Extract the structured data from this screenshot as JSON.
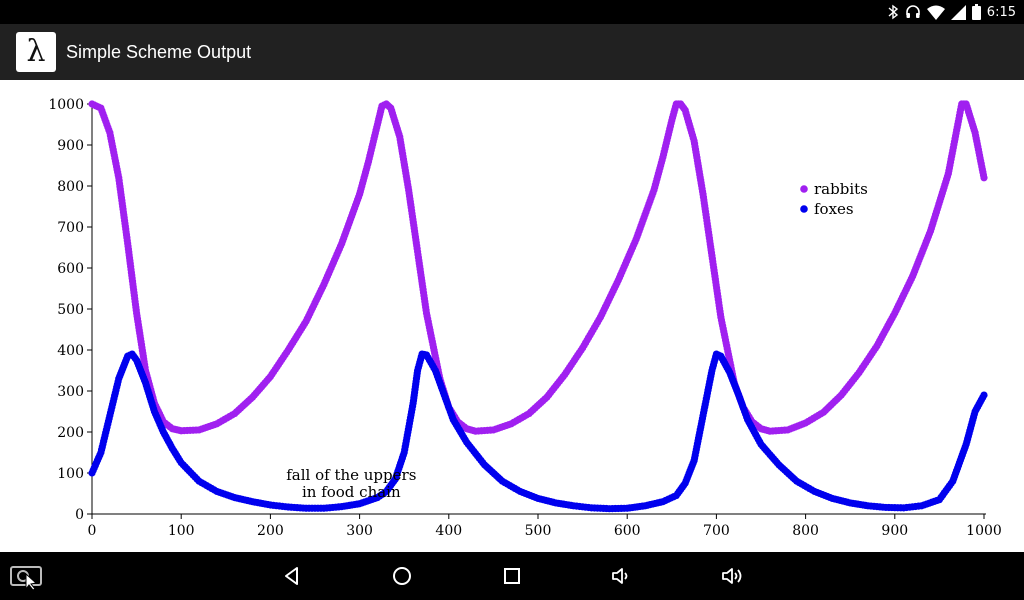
{
  "status_bar": {
    "time": "6:15",
    "icons": [
      "bluetooth-icon",
      "headset-icon",
      "wifi-icon",
      "signal-icon",
      "battery-icon"
    ]
  },
  "app_bar": {
    "icon_glyph": "λ",
    "title": "Simple Scheme Output"
  },
  "nav_bar": {
    "buttons": [
      "screenshot-icon",
      "back-icon",
      "home-icon",
      "recents-icon",
      "volume-down-icon",
      "volume-up-icon"
    ]
  },
  "colors": {
    "rabbits": "#a020f0",
    "foxes": "#0000ee",
    "app_bar": "#212121"
  },
  "chart_data": {
    "type": "scatter",
    "xlim": [
      0,
      1000
    ],
    "ylim": [
      0,
      1000
    ],
    "x_ticks": [
      0,
      100,
      200,
      300,
      400,
      500,
      600,
      700,
      800,
      900,
      1000
    ],
    "y_ticks": [
      0,
      100,
      200,
      300,
      400,
      500,
      600,
      700,
      800,
      900,
      1000
    ],
    "legend_position": "top-right",
    "annotation": {
      "lines": [
        "fall of the uppers",
        "in food chain"
      ],
      "x": 210,
      "y": 88
    },
    "series": [
      {
        "name": "rabbits",
        "color": "#a020f0",
        "points": [
          [
            0,
            1000
          ],
          [
            10,
            990
          ],
          [
            20,
            930
          ],
          [
            30,
            820
          ],
          [
            40,
            660
          ],
          [
            50,
            490
          ],
          [
            60,
            350
          ],
          [
            70,
            270
          ],
          [
            80,
            225
          ],
          [
            90,
            208
          ],
          [
            100,
            203
          ],
          [
            120,
            205
          ],
          [
            140,
            220
          ],
          [
            160,
            245
          ],
          [
            180,
            285
          ],
          [
            200,
            335
          ],
          [
            220,
            400
          ],
          [
            240,
            470
          ],
          [
            260,
            560
          ],
          [
            280,
            660
          ],
          [
            300,
            780
          ],
          [
            310,
            860
          ],
          [
            320,
            950
          ],
          [
            325,
            995
          ],
          [
            330,
            1000
          ],
          [
            335,
            990
          ],
          [
            345,
            920
          ],
          [
            355,
            790
          ],
          [
            365,
            640
          ],
          [
            375,
            490
          ],
          [
            390,
            330
          ],
          [
            400,
            260
          ],
          [
            410,
            225
          ],
          [
            420,
            208
          ],
          [
            430,
            202
          ],
          [
            450,
            205
          ],
          [
            470,
            220
          ],
          [
            490,
            245
          ],
          [
            510,
            285
          ],
          [
            530,
            340
          ],
          [
            550,
            405
          ],
          [
            570,
            480
          ],
          [
            590,
            570
          ],
          [
            610,
            670
          ],
          [
            630,
            790
          ],
          [
            640,
            870
          ],
          [
            650,
            960
          ],
          [
            655,
            1000
          ],
          [
            660,
            1000
          ],
          [
            665,
            985
          ],
          [
            675,
            910
          ],
          [
            685,
            780
          ],
          [
            695,
            630
          ],
          [
            705,
            480
          ],
          [
            720,
            320
          ],
          [
            730,
            260
          ],
          [
            740,
            225
          ],
          [
            750,
            208
          ],
          [
            760,
            202
          ],
          [
            780,
            205
          ],
          [
            800,
            222
          ],
          [
            820,
            248
          ],
          [
            840,
            290
          ],
          [
            860,
            345
          ],
          [
            880,
            410
          ],
          [
            900,
            490
          ],
          [
            920,
            580
          ],
          [
            940,
            690
          ],
          [
            960,
            830
          ],
          [
            975,
            1000
          ],
          [
            980,
            1000
          ],
          [
            990,
            930
          ],
          [
            1000,
            820
          ]
        ]
      },
      {
        "name": "foxes",
        "color": "#0000ee",
        "points": [
          [
            0,
            100
          ],
          [
            10,
            150
          ],
          [
            20,
            240
          ],
          [
            30,
            330
          ],
          [
            40,
            385
          ],
          [
            45,
            390
          ],
          [
            50,
            375
          ],
          [
            60,
            320
          ],
          [
            70,
            250
          ],
          [
            80,
            200
          ],
          [
            90,
            160
          ],
          [
            100,
            125
          ],
          [
            120,
            80
          ],
          [
            140,
            55
          ],
          [
            160,
            40
          ],
          [
            180,
            30
          ],
          [
            200,
            22
          ],
          [
            220,
            17
          ],
          [
            240,
            14
          ],
          [
            260,
            14
          ],
          [
            280,
            18
          ],
          [
            300,
            25
          ],
          [
            320,
            40
          ],
          [
            330,
            55
          ],
          [
            340,
            85
          ],
          [
            350,
            150
          ],
          [
            360,
            270
          ],
          [
            365,
            350
          ],
          [
            370,
            390
          ],
          [
            375,
            388
          ],
          [
            385,
            350
          ],
          [
            395,
            290
          ],
          [
            405,
            230
          ],
          [
            420,
            175
          ],
          [
            440,
            120
          ],
          [
            460,
            80
          ],
          [
            480,
            55
          ],
          [
            500,
            38
          ],
          [
            520,
            27
          ],
          [
            540,
            20
          ],
          [
            560,
            15
          ],
          [
            580,
            13
          ],
          [
            600,
            14
          ],
          [
            620,
            20
          ],
          [
            640,
            30
          ],
          [
            655,
            45
          ],
          [
            665,
            75
          ],
          [
            675,
            130
          ],
          [
            685,
            240
          ],
          [
            695,
            350
          ],
          [
            700,
            390
          ],
          [
            705,
            385
          ],
          [
            715,
            345
          ],
          [
            725,
            290
          ],
          [
            735,
            230
          ],
          [
            750,
            170
          ],
          [
            770,
            120
          ],
          [
            790,
            80
          ],
          [
            810,
            55
          ],
          [
            830,
            38
          ],
          [
            850,
            27
          ],
          [
            870,
            20
          ],
          [
            890,
            16
          ],
          [
            910,
            15
          ],
          [
            930,
            20
          ],
          [
            950,
            35
          ],
          [
            965,
            80
          ],
          [
            980,
            170
          ],
          [
            990,
            250
          ],
          [
            1000,
            290
          ]
        ]
      }
    ]
  }
}
